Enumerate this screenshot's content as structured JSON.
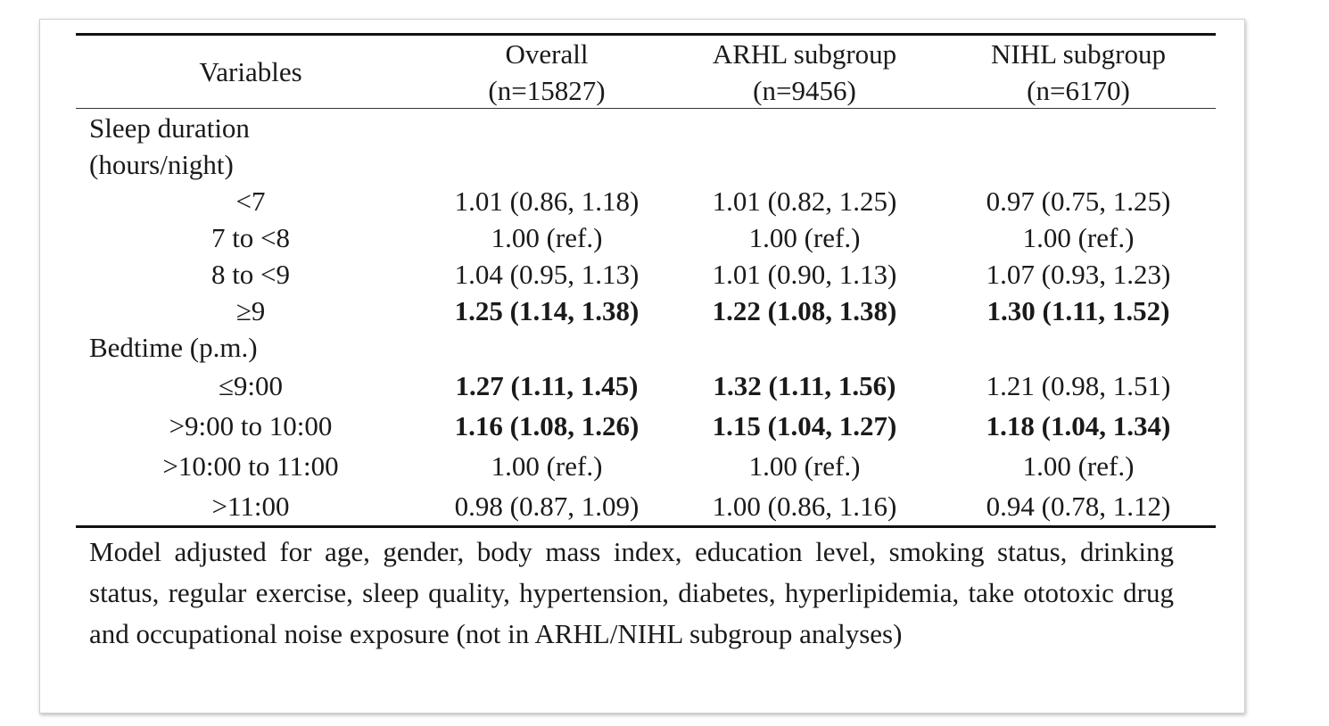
{
  "header": {
    "variables": "Variables",
    "overall_title": "Overall",
    "overall_n": "(n=15827)",
    "arhl_title": "ARHL subgroup",
    "arhl_n": "(n=9456)",
    "nihl_title": "NIHL subgroup",
    "nihl_n": "(n=6170)"
  },
  "sleep": {
    "label_line1": "Sleep duration",
    "label_line2": "(hours/night)",
    "rows": [
      {
        "label": "<7",
        "overall": "1.01 (0.86, 1.18)",
        "arhl": "1.01 (0.82, 1.25)",
        "nihl": "0.97 (0.75, 1.25)",
        "bold_overall": false,
        "bold_arhl": false,
        "bold_nihl": false
      },
      {
        "label": "7 to <8",
        "overall": "1.00 (ref.)",
        "arhl": "1.00 (ref.)",
        "nihl": "1.00 (ref.)",
        "bold_overall": false,
        "bold_arhl": false,
        "bold_nihl": false
      },
      {
        "label": "8 to <9",
        "overall": "1.04 (0.95, 1.13)",
        "arhl": "1.01 (0.90, 1.13)",
        "nihl": "1.07 (0.93, 1.23)",
        "bold_overall": false,
        "bold_arhl": false,
        "bold_nihl": false
      },
      {
        "label": "≥9",
        "overall": "1.25 (1.14, 1.38)",
        "arhl": "1.22 (1.08, 1.38)",
        "nihl": "1.30 (1.11, 1.52)",
        "bold_overall": true,
        "bold_arhl": true,
        "bold_nihl": true
      }
    ]
  },
  "bedtime": {
    "label": "Bedtime (p.m.)",
    "rows": [
      {
        "label": "≤9:00",
        "overall": "1.27 (1.11, 1.45)",
        "arhl": "1.32 (1.11, 1.56)",
        "nihl": "1.21 (0.98, 1.51)",
        "bold_overall": true,
        "bold_arhl": true,
        "bold_nihl": false
      },
      {
        "label": ">9:00 to 10:00",
        "overall": "1.16 (1.08, 1.26)",
        "arhl": "1.15 (1.04, 1.27)",
        "nihl": "1.18 (1.04, 1.34)",
        "bold_overall": true,
        "bold_arhl": true,
        "bold_nihl": true
      },
      {
        "label": ">10:00 to 11:00",
        "overall": "1.00 (ref.)",
        "arhl": "1.00 (ref.)",
        "nihl": "1.00 (ref.)",
        "bold_overall": false,
        "bold_arhl": false,
        "bold_nihl": false
      },
      {
        "label": ">11:00",
        "overall": "0.98 (0.87, 1.09)",
        "arhl": "1.00 (0.86, 1.16)",
        "nihl": "0.94 (0.78, 1.12)",
        "bold_overall": false,
        "bold_arhl": false,
        "bold_nihl": false
      }
    ]
  },
  "footnote": "Model adjusted for age, gender, body mass index, education level, smoking status, drinking status, regular exercise, sleep quality, hypertension, diabetes, hyperlipidemia, take ototoxic drug and occupational noise exposure (not in ARHL/NIHL subgroup analyses)"
}
